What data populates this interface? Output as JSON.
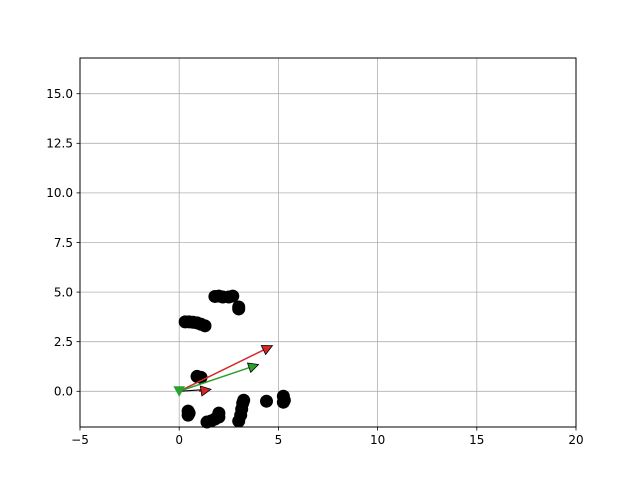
{
  "chart_data": {
    "type": "scatter",
    "title": "",
    "xlabel": "",
    "ylabel": "",
    "xlim": [
      -5,
      20
    ],
    "ylim": [
      -1.8,
      16.8
    ],
    "grid": true,
    "xticks": [
      -5,
      0,
      5,
      10,
      15,
      20
    ],
    "xtick_labels": [
      "−5",
      "0",
      "5",
      "10",
      "15",
      "20"
    ],
    "yticks": [
      0.0,
      2.5,
      5.0,
      7.5,
      10.0,
      12.5,
      15.0
    ],
    "ytick_labels": [
      "0.0",
      "2.5",
      "5.0",
      "7.5",
      "10.0",
      "12.5",
      "15.0"
    ],
    "series": [
      {
        "marker": "circle",
        "color": "#000000",
        "points": [
          [
            0.3,
            3.5
          ],
          [
            0.5,
            3.5
          ],
          [
            0.7,
            3.48
          ],
          [
            0.9,
            3.45
          ],
          [
            1.1,
            3.38
          ],
          [
            1.3,
            3.3
          ],
          [
            1.8,
            4.78
          ],
          [
            2.0,
            4.8
          ],
          [
            2.2,
            4.75
          ],
          [
            2.5,
            4.75
          ],
          [
            2.7,
            4.8
          ],
          [
            3.0,
            4.25
          ],
          [
            3.0,
            4.15
          ],
          [
            0.9,
            0.75
          ],
          [
            1.1,
            0.7
          ],
          [
            0.45,
            -1.0
          ],
          [
            0.45,
            -1.2
          ],
          [
            0.5,
            -1.1
          ],
          [
            1.4,
            -1.55
          ],
          [
            1.6,
            -1.5
          ],
          [
            1.8,
            -1.4
          ],
          [
            2.0,
            -1.1
          ],
          [
            2.0,
            -1.3
          ],
          [
            3.0,
            -1.5
          ],
          [
            3.1,
            -1.2
          ],
          [
            3.15,
            -0.9
          ],
          [
            3.2,
            -0.6
          ],
          [
            3.25,
            -0.45
          ],
          [
            4.4,
            -0.5
          ],
          [
            5.25,
            -0.25
          ],
          [
            5.3,
            -0.45
          ],
          [
            5.25,
            -0.55
          ]
        ]
      }
    ],
    "arrows": [
      {
        "color": "#d62728",
        "head": "triangle",
        "from": [
          0.0,
          0.0
        ],
        "to": [
          4.7,
          2.3
        ]
      },
      {
        "color": "#000000",
        "head": "none",
        "from": [
          0.0,
          0.0
        ],
        "to": [
          1.5,
          0.1
        ]
      },
      {
        "color": "#d62728",
        "head": "triangle",
        "from": [
          1.0,
          0.0
        ],
        "to": [
          1.6,
          0.1
        ]
      },
      {
        "color": "#2ca02c",
        "head": "triangle",
        "from": [
          0.0,
          0.0
        ],
        "to": [
          4.0,
          1.35
        ]
      },
      {
        "color": "#2ca02c",
        "head": "triangle-down",
        "from": [
          0.0,
          0.1
        ],
        "to": [
          0.0,
          -0.05
        ]
      }
    ]
  }
}
